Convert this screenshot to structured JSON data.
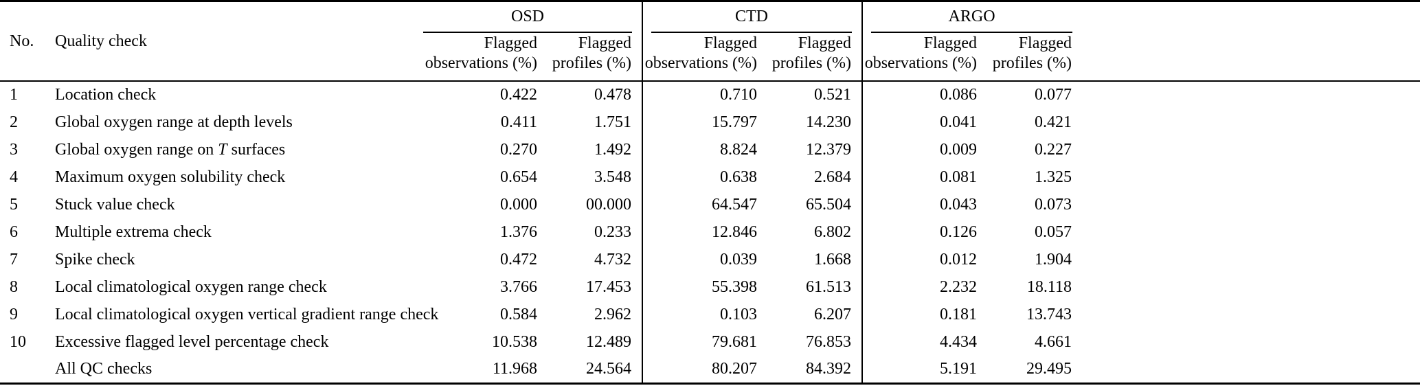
{
  "colors": {
    "background": "#ffffff",
    "text": "#000000",
    "rule": "#000000"
  },
  "table": {
    "groups": [
      {
        "name": "OSD"
      },
      {
        "name": "CTD"
      },
      {
        "name": "ARGO"
      }
    ],
    "headers": {
      "no": "No.",
      "quality_check": "Quality check",
      "flagged_line": "Flagged",
      "observations_line": "observations (%)",
      "profiles_line": "profiles (%)"
    },
    "rows": [
      {
        "no": "1",
        "check": [
          {
            "t": "Location check"
          }
        ],
        "values": [
          "0.422",
          "0.478",
          "0.710",
          "0.521",
          "0.086",
          "0.077"
        ]
      },
      {
        "no": "2",
        "check": [
          {
            "t": "Global oxygen range at depth levels"
          }
        ],
        "values": [
          "0.411",
          "1.751",
          "15.797",
          "14.230",
          "0.041",
          "0.421"
        ]
      },
      {
        "no": "3",
        "check": [
          {
            "t": "Global oxygen range on "
          },
          {
            "t": "T",
            "italic": true
          },
          {
            "t": " surfaces"
          }
        ],
        "values": [
          "0.270",
          "1.492",
          "8.824",
          "12.379",
          "0.009",
          "0.227"
        ]
      },
      {
        "no": "4",
        "check": [
          {
            "t": "Maximum oxygen solubility check"
          }
        ],
        "values": [
          "0.654",
          "3.548",
          "0.638",
          "2.684",
          "0.081",
          "1.325"
        ]
      },
      {
        "no": "5",
        "check": [
          {
            "t": "Stuck value check"
          }
        ],
        "values": [
          "0.000",
          "00.000",
          "64.547",
          "65.504",
          "0.043",
          "0.073"
        ]
      },
      {
        "no": "6",
        "check": [
          {
            "t": "Multiple extrema check"
          }
        ],
        "values": [
          "1.376",
          "0.233",
          "12.846",
          "6.802",
          "0.126",
          "0.057"
        ]
      },
      {
        "no": "7",
        "check": [
          {
            "t": "Spike check"
          }
        ],
        "values": [
          "0.472",
          "4.732",
          "0.039",
          "1.668",
          "0.012",
          "1.904"
        ]
      },
      {
        "no": "8",
        "check": [
          {
            "t": "Local climatological oxygen range check"
          }
        ],
        "values": [
          "3.766",
          "17.453",
          "55.398",
          "61.513",
          "2.232",
          "18.118"
        ]
      },
      {
        "no": "9",
        "check": [
          {
            "t": "Local climatological oxygen vertical gradient range check"
          }
        ],
        "values": [
          "0.584",
          "2.962",
          "0.103",
          "6.207",
          "0.181",
          "13.743"
        ]
      },
      {
        "no": "10",
        "check": [
          {
            "t": "Excessive flagged level percentage check"
          }
        ],
        "values": [
          "10.538",
          "12.489",
          "79.681",
          "76.853",
          "4.434",
          "4.661"
        ]
      },
      {
        "no": "",
        "check": [
          {
            "t": "All QC checks"
          }
        ],
        "values": [
          "11.968",
          "24.564",
          "80.207",
          "84.392",
          "5.191",
          "29.495"
        ]
      }
    ]
  }
}
